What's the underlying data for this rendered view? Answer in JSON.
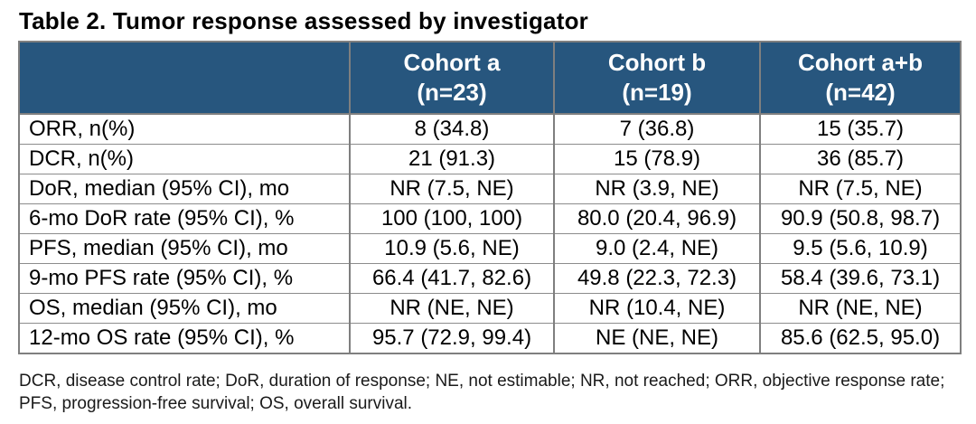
{
  "title": "Table 2. Tumor response assessed by investigator",
  "table": {
    "header_cells": [
      {
        "label": "",
        "sub": ""
      },
      {
        "label": "Cohort a",
        "sub": "(n=23)"
      },
      {
        "label": "Cohort b",
        "sub": "(n=19)"
      },
      {
        "label": "Cohort a+b",
        "sub": "(n=42)"
      }
    ],
    "rows": [
      {
        "label": "ORR, n(%)",
        "values": [
          "8 (34.8)",
          "7 (36.8)",
          "15 (35.7)"
        ]
      },
      {
        "label": "DCR, n(%)",
        "values": [
          "21 (91.3)",
          "15 (78.9)",
          "36 (85.7)"
        ]
      },
      {
        "label": "DoR, median (95% CI), mo",
        "values": [
          "NR (7.5, NE)",
          "NR (3.9, NE)",
          "NR (7.5, NE)"
        ]
      },
      {
        "label": "6-mo DoR rate (95% CI), %",
        "values": [
          "100 (100, 100)",
          "80.0 (20.4, 96.9)",
          "90.9 (50.8, 98.7)"
        ]
      },
      {
        "label": "PFS, median (95% CI), mo",
        "values": [
          "10.9 (5.6, NE)",
          "9.0 (2.4, NE)",
          "9.5 (5.6, 10.9)"
        ]
      },
      {
        "label": "9-mo PFS rate (95% CI), %",
        "values": [
          "66.4 (41.7, 82.6)",
          "49.8 (22.3, 72.3)",
          "58.4 (39.6, 73.1)"
        ]
      },
      {
        "label": "OS, median (95% CI), mo",
        "values": [
          "NR (NE, NE)",
          "NR (10.4, NE)",
          "NR (NE, NE)"
        ]
      },
      {
        "label": "12-mo OS rate (95% CI), %",
        "values": [
          "95.7 (72.9, 99.4)",
          "NE (NE, NE)",
          "85.6 (62.5, 95.0)"
        ]
      }
    ]
  },
  "footnote": {
    "line1": "DCR, disease control rate; DoR, duration of response; NE, not estimable; NR, not reached; ORR, objective response rate;",
    "line2": "PFS, progression-free survival; OS, overall survival."
  },
  "colors": {
    "header_background": "#27567e",
    "header_text": "#ffffff",
    "border_gray": "#7f7f7f",
    "body_text": "#000000"
  }
}
